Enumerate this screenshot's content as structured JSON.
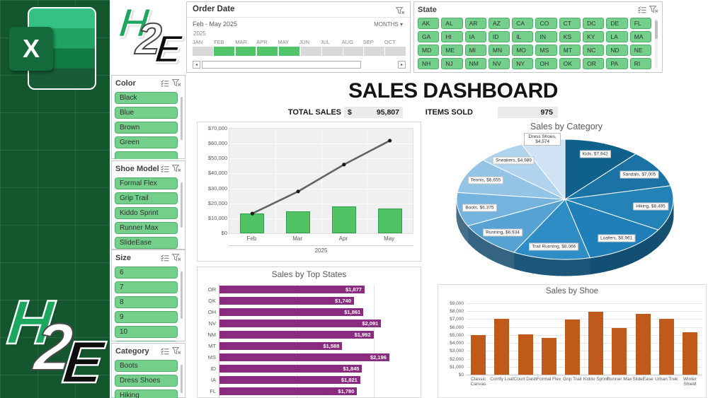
{
  "brand": {
    "excel_letter": "X",
    "h2e": {
      "h": "H",
      "two": "2",
      "e": "E"
    }
  },
  "icons": {
    "dropdown_glyph": "▾",
    "scroll_left_glyph": "◂",
    "scroll_right_glyph": "▸"
  },
  "timeline": {
    "title": "Order Date",
    "range_label": "Feb - May 2025",
    "level_label": "MONTHS",
    "year": "2025",
    "months": [
      "JAN",
      "FEB",
      "MAR",
      "APR",
      "MAY",
      "JUN",
      "JUL",
      "AUG",
      "SEP",
      "OCT"
    ],
    "selected_months": [
      "FEB",
      "MAR",
      "APR",
      "MAY"
    ]
  },
  "state_slicer": {
    "title": "State",
    "items": [
      "AK",
      "AL",
      "AR",
      "AZ",
      "CA",
      "CO",
      "CT",
      "DC",
      "DE",
      "FL",
      "GA",
      "HI",
      "IA",
      "ID",
      "IL",
      "IN",
      "KS",
      "KY",
      "LA",
      "MA",
      "MD",
      "ME",
      "MI",
      "MN",
      "MO",
      "MS",
      "MT",
      "NC",
      "ND",
      "NE",
      "NH",
      "NJ",
      "NM",
      "NV",
      "NY",
      "OH",
      "OK",
      "OR",
      "PA",
      "RI"
    ]
  },
  "slicers": [
    {
      "title": "Color",
      "items": [
        "Black",
        "Blue",
        "Brown",
        "Green"
      ]
    },
    {
      "title": "Shoe Model",
      "items": [
        "Formal Flex",
        "Grip Trail",
        "Kiddo Sprint",
        "Runner Max",
        "SlideEase"
      ]
    },
    {
      "title": "Size",
      "items": [
        "6",
        "7",
        "8",
        "9",
        "10"
      ]
    },
    {
      "title": "Category",
      "items": [
        "Boots",
        "Dress Shoes",
        "Hiking"
      ]
    }
  ],
  "header": {
    "title": "SALES DASHBOARD"
  },
  "kpis": {
    "total_sales_label": "TOTAL SALES",
    "currency": "$",
    "total_sales_value": "95,807",
    "items_sold_label": "ITEMS SOLD",
    "items_sold_value": "975"
  },
  "chart_data": [
    {
      "type": "bar",
      "name": "monthly-sales-combo",
      "title": "",
      "categories": [
        "Feb",
        "Mar",
        "Apr",
        "May"
      ],
      "x_group_label": "2025",
      "series": [
        {
          "name": "Monthly Sales",
          "type": "bar",
          "values": [
            13200,
            14600,
            18100,
            16600
          ]
        },
        {
          "name": "Cumulative Sales",
          "type": "line",
          "values": [
            13200,
            28000,
            46000,
            62000
          ]
        }
      ],
      "ylim": [
        0,
        70000
      ],
      "ytick_labels": [
        "$0",
        "$10,000",
        "$20,000",
        "$30,000",
        "$40,000",
        "$50,000",
        "$60,000",
        "$70,000"
      ],
      "grid": true,
      "bar_color": "#52c364",
      "line_color": "#636363",
      "marker_color": "#1a1a1a"
    },
    {
      "type": "pie",
      "name": "sales-by-category",
      "title": "Sales by Category",
      "style": "3d",
      "slices": [
        {
          "label": "Kids",
          "value": 7942,
          "display": "Kids, $7,942",
          "color": "#10608c"
        },
        {
          "label": "Sandals",
          "value": 7005,
          "display": "Sandals, $7,005",
          "color": "#1a73a4"
        },
        {
          "label": "Hiking",
          "value": 8495,
          "display": "Hiking, $8,495",
          "color": "#2383b6"
        },
        {
          "label": "Loafers",
          "value": 8961,
          "display": "Loafers, $8,961",
          "color": "#1f7fb9"
        },
        {
          "label": "Trail Running",
          "value": 8066,
          "display": "Trail Running, $8,066",
          "color": "#2d8dc4"
        },
        {
          "label": "Running",
          "value": 6934,
          "display": "Running, $6,934",
          "color": "#55a2d3"
        },
        {
          "label": "Boots",
          "value": 6375,
          "display": "Boots, $6,375",
          "color": "#74b3dd"
        },
        {
          "label": "Tennis",
          "value": 6655,
          "display": "Tennis, $6,655",
          "color": "#93c4e6"
        },
        {
          "label": "Sneakers",
          "value": 4989,
          "display": "Sneakers, $4,989",
          "color": "#b1d4ee"
        },
        {
          "label": "Dress Shoes",
          "value": 4574,
          "display": "Dress Shoes, $4,574",
          "color": "#cfe3f5",
          "two_line": true
        }
      ]
    },
    {
      "type": "bar",
      "name": "sales-by-top-states",
      "orientation": "horizontal",
      "title": "Sales by Top States",
      "categories": [
        "OR",
        "OK",
        "OH",
        "NV",
        "NM",
        "MT",
        "MS",
        "ID",
        "IA",
        "FL"
      ],
      "values": [
        1877,
        1740,
        1861,
        2091,
        1992,
        1588,
        2196,
        1845,
        1821,
        1780
      ],
      "value_labels": [
        "$1,877",
        "$1,740",
        "$1,861",
        "$2,091",
        "$1,992",
        "$1,588",
        "$2,196",
        "$1,845",
        "$1,821",
        "$1,780"
      ],
      "xlim": [
        0,
        2500
      ],
      "grid_step": 1000,
      "bar_color": "#8b2b80"
    },
    {
      "type": "bar",
      "name": "sales-by-shoe",
      "title": "Sales by Shoe",
      "categories": [
        "Classic Canvas",
        "Comfy Loaf",
        "Court Dash",
        "Formal Flex",
        "Grip Trail",
        "Kiddo Sprint",
        "Runner Max",
        "SlideEase",
        "Urban Trek",
        "Winter Shield"
      ],
      "values": [
        5000,
        7000,
        5050,
        4600,
        6950,
        7900,
        5900,
        7700,
        7050,
        5350
      ],
      "ylim": [
        0,
        9000
      ],
      "ytick_labels": [
        "$0",
        "$1,000",
        "$2,000",
        "$3,000",
        "$4,000",
        "$5,000",
        "$6,000",
        "$7,000",
        "$8,000",
        "$9,000"
      ],
      "bar_color": "#c05a1a"
    }
  ]
}
